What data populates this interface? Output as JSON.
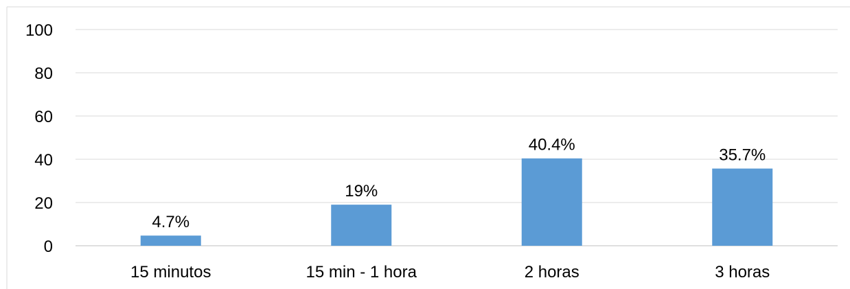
{
  "chart_data": {
    "type": "bar",
    "categories": [
      "15 minutos",
      "15 min - 1 hora",
      "2 horas",
      "3 horas"
    ],
    "values": [
      4.7,
      19,
      40.4,
      35.7
    ],
    "data_labels": [
      "4.7%",
      "19%",
      "40.4%",
      "35.7%"
    ],
    "title": "",
    "xlabel": "",
    "ylabel": "",
    "ylim": [
      0,
      100
    ],
    "yticks": [
      0,
      20,
      40,
      60,
      80,
      100
    ],
    "grid": true,
    "legend": "none",
    "colors": {
      "bar": "#5b9bd5",
      "grid": "#d9d9d9",
      "axis": "#bfbfbf",
      "text": "#000000"
    }
  }
}
